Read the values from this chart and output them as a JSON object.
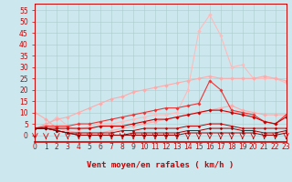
{
  "xlabel": "Vent moyen/en rafales ( km/h )",
  "background_color": "#cce8ee",
  "grid_color": "#aacccc",
  "x": [
    0,
    1,
    2,
    3,
    4,
    5,
    6,
    7,
    8,
    9,
    10,
    11,
    12,
    13,
    14,
    15,
    16,
    17,
    18,
    19,
    20,
    21,
    22,
    23
  ],
  "ylim": [
    -3,
    58
  ],
  "xlim": [
    0,
    23
  ],
  "yticks": [
    0,
    5,
    10,
    15,
    20,
    25,
    30,
    35,
    40,
    45,
    50,
    55
  ],
  "ytick_labels": [
    "0",
    "5",
    "10",
    "15",
    "20",
    "25",
    "30",
    "35",
    "40",
    "45",
    "50",
    "55"
  ],
  "series": [
    {
      "name": "lightest_pink_high",
      "y": [
        3,
        4,
        8,
        4,
        2,
        4,
        5,
        5,
        6,
        7,
        8,
        9,
        9,
        10,
        20,
        46,
        53,
        44,
        30,
        31,
        25,
        25,
        25,
        23
      ],
      "color": "#ffbbbb",
      "linewidth": 0.8,
      "markersize": 2.0
    },
    {
      "name": "light_pink_medium",
      "y": [
        3,
        5,
        7,
        8,
        10,
        12,
        14,
        16,
        17,
        19,
        20,
        21,
        22,
        23,
        24,
        25,
        26,
        25,
        25,
        25,
        25,
        26,
        25,
        24
      ],
      "color": "#ffaaaa",
      "linewidth": 0.8,
      "markersize": 2.0
    },
    {
      "name": "lightest_pink_low",
      "y": [
        10,
        7,
        3,
        2,
        1,
        1,
        1,
        2,
        3,
        4,
        5,
        6,
        7,
        8,
        9,
        10,
        11,
        12,
        13,
        11,
        10,
        9,
        9,
        9
      ],
      "color": "#ffaaaa",
      "linewidth": 0.8,
      "markersize": 2.0
    },
    {
      "name": "medium_red_upper",
      "y": [
        3,
        4,
        4,
        4,
        5,
        5,
        6,
        7,
        8,
        9,
        10,
        11,
        12,
        12,
        13,
        14,
        24,
        20,
        11,
        10,
        9,
        6,
        5,
        9
      ],
      "color": "#ee3333",
      "linewidth": 0.8,
      "markersize": 1.8
    },
    {
      "name": "medium_red_lower",
      "y": [
        3,
        3,
        3,
        3,
        3,
        3,
        4,
        4,
        4,
        5,
        6,
        7,
        7,
        8,
        9,
        10,
        11,
        11,
        10,
        9,
        8,
        6,
        5,
        8
      ],
      "color": "#cc0000",
      "linewidth": 0.8,
      "markersize": 1.8
    },
    {
      "name": "dark_red_flat1",
      "y": [
        3,
        3,
        2,
        1,
        1,
        1,
        1,
        1,
        2,
        2,
        3,
        3,
        3,
        3,
        4,
        4,
        5,
        5,
        4,
        3,
        3,
        3,
        3,
        3
      ],
      "color": "#bb0000",
      "linewidth": 0.7,
      "markersize": 1.5
    },
    {
      "name": "dark_red_flat2",
      "y": [
        3,
        3,
        2,
        1,
        0,
        0,
        0,
        0,
        0,
        1,
        1,
        1,
        1,
        1,
        2,
        2,
        3,
        3,
        3,
        2,
        2,
        1,
        1,
        2
      ],
      "color": "#990000",
      "linewidth": 0.7,
      "markersize": 1.5
    },
    {
      "name": "dark_red_flat3",
      "y": [
        3,
        3,
        2,
        1,
        0,
        0,
        0,
        0,
        0,
        0,
        0,
        0,
        0,
        0,
        1,
        1,
        1,
        1,
        1,
        1,
        1,
        0,
        0,
        1
      ],
      "color": "#880000",
      "linewidth": 0.7,
      "markersize": 1.5
    }
  ],
  "tick_label_fontsize": 5.5,
  "xlabel_fontsize": 6.5,
  "xlabel_color": "#cc0000",
  "tick_color": "#cc0000",
  "arrow_color": "#cc0000"
}
